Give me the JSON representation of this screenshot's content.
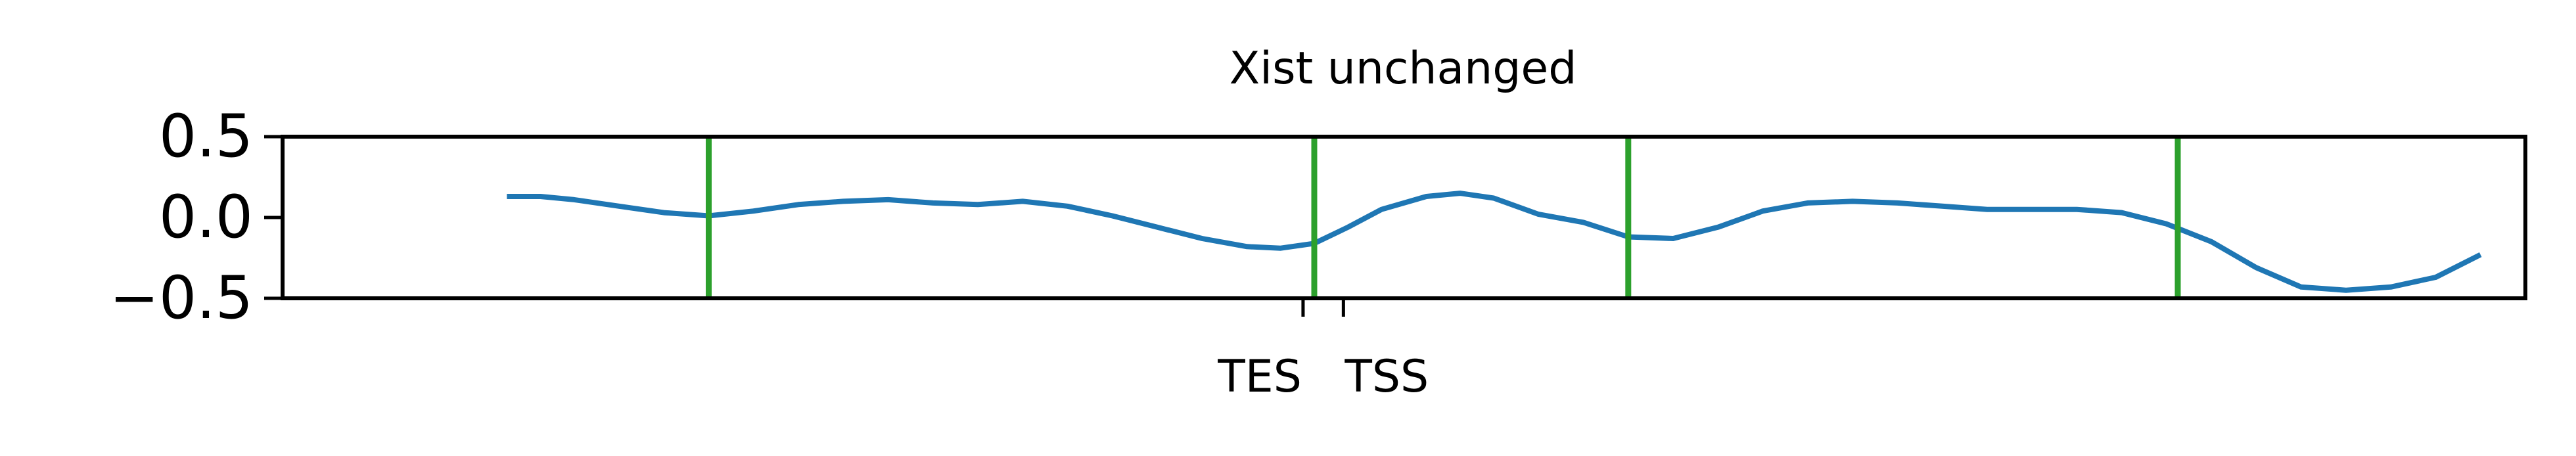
{
  "chart_data": {
    "type": "line",
    "title": "Xist unchanged",
    "xlabel": "",
    "ylabel": "",
    "ylim": [
      -0.5,
      0.5
    ],
    "y_ticks": [
      {
        "value": 0.5,
        "label": "0.5"
      },
      {
        "value": 0.0,
        "label": "0.0"
      },
      {
        "value": -0.5,
        "label": "−0.5"
      }
    ],
    "xlim": [
      0,
      100
    ],
    "x_ticks": [
      {
        "value": 45.5,
        "label": "TES"
      },
      {
        "value": 47.3,
        "label": "TSS"
      }
    ],
    "grid": false,
    "legend": "none",
    "series": [
      {
        "color": "#1f77b4",
        "x": [
          10,
          11.5,
          13,
          15,
          17,
          19,
          21,
          23,
          25,
          27,
          29,
          31,
          33,
          35,
          37,
          39,
          41,
          43,
          44.5,
          46,
          47.5,
          49,
          51,
          52.5,
          54,
          56,
          58,
          60,
          62,
          64,
          66,
          68,
          70,
          72,
          74,
          76,
          78,
          80,
          82,
          84,
          86,
          88,
          90,
          92,
          94,
          96,
          98
        ],
        "y": [
          0.13,
          0.13,
          0.11,
          0.07,
          0.03,
          0.01,
          0.04,
          0.08,
          0.1,
          0.11,
          0.09,
          0.08,
          0.1,
          0.07,
          0.01,
          -0.06,
          -0.13,
          -0.18,
          -0.19,
          -0.16,
          -0.06,
          0.05,
          0.13,
          0.15,
          0.12,
          0.02,
          -0.03,
          -0.12,
          -0.13,
          -0.06,
          0.04,
          0.09,
          0.1,
          0.09,
          0.07,
          0.05,
          0.05,
          0.05,
          0.03,
          -0.04,
          -0.15,
          -0.31,
          -0.43,
          -0.45,
          -0.43,
          -0.37,
          -0.23
        ]
      }
    ],
    "vlines": {
      "color": "#2ca02c",
      "x": [
        19,
        46,
        60,
        84.5
      ]
    }
  }
}
